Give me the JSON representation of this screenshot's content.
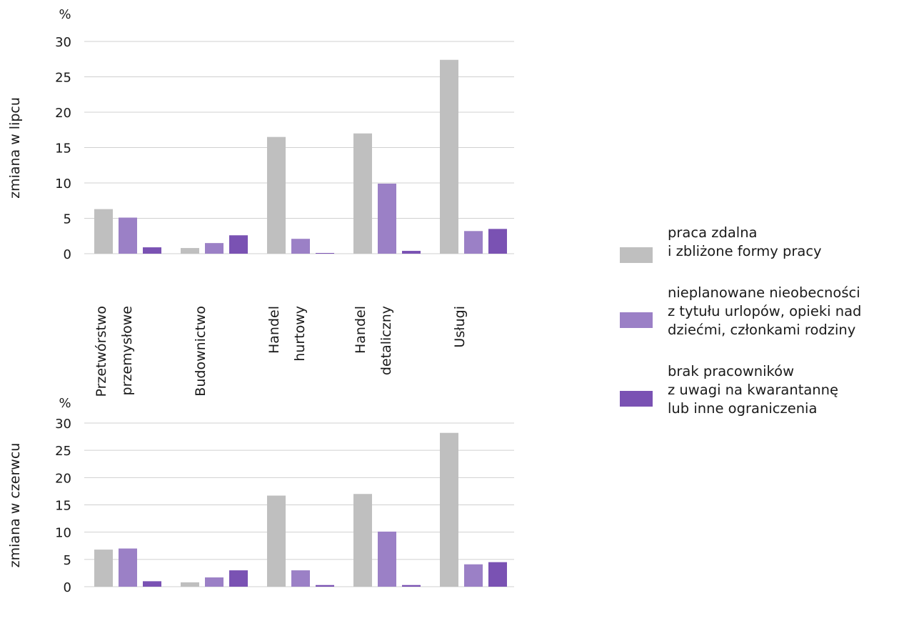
{
  "chart_data": [
    {
      "type": "bar",
      "unit": "%",
      "ylabel": "zmiana w lipcu",
      "ylim": [
        0,
        30
      ],
      "yticks": [
        0,
        5,
        10,
        15,
        20,
        25,
        30
      ],
      "grid": true,
      "categories": [
        "Przetwórstwo\nprzemysłowe",
        "Budownictwo",
        "Handel\nhurtowy",
        "Handel\ndetaliczny",
        "Usługi"
      ],
      "series": [
        {
          "name": "praca zdalna\ni zbliżone formy pracy",
          "color": "#bfbfbf",
          "values": [
            6.3,
            0.8,
            16.5,
            17.0,
            27.4
          ]
        },
        {
          "name": "nieplanowane nieobecności\nz tytułu urlopów, opieki nad\ndziećmi, członkami rodziny",
          "color": "#9b80c6",
          "values": [
            5.1,
            1.5,
            2.1,
            9.9,
            3.2
          ]
        },
        {
          "name": "brak pracowników\nz uwagi na kwarantannę\nlub inne ograniczenia",
          "color": "#7a52b3",
          "values": [
            0.9,
            2.6,
            0.1,
            0.4,
            3.5
          ]
        }
      ]
    },
    {
      "type": "bar",
      "unit": "%",
      "ylabel": "zmiana w czerwcu",
      "ylim": [
        0,
        30
      ],
      "yticks": [
        0,
        5,
        10,
        15,
        20,
        25,
        30
      ],
      "grid": true,
      "categories": [
        "Przetwórstwo\nprzemysłowe",
        "Budownictwo",
        "Handel\nhurtowy",
        "Handel\ndetaliczny",
        "Usługi"
      ],
      "series": [
        {
          "name": "praca zdalna\ni zbliżone formy pracy",
          "color": "#bfbfbf",
          "values": [
            6.8,
            0.8,
            16.7,
            17.0,
            28.2
          ]
        },
        {
          "name": "nieplanowane nieobecności\nz tytułu urlopów, opieki nad\ndziećmi, członkami rodziny",
          "color": "#9b80c6",
          "values": [
            7.0,
            1.7,
            3.0,
            10.1,
            4.1
          ]
        },
        {
          "name": "brak pracowników\nz uwagi na kwarantannę\nlub inne ograniczenia",
          "color": "#7a52b3",
          "values": [
            1.0,
            3.0,
            0.3,
            0.3,
            4.5
          ]
        }
      ]
    }
  ],
  "legend": {
    "position": "right",
    "items": [
      {
        "label": "praca zdalna\ni zbliżone formy pracy",
        "color": "#bfbfbf"
      },
      {
        "label": "nieplanowane nieobecności\nz tytułu urlopów, opieki nad\ndziećmi, członkami rodziny",
        "color": "#9b80c6"
      },
      {
        "label": "brak pracowników\nz uwagi na kwarantannę\nlub inne ograniczenia",
        "color": "#7a52b3"
      }
    ]
  }
}
